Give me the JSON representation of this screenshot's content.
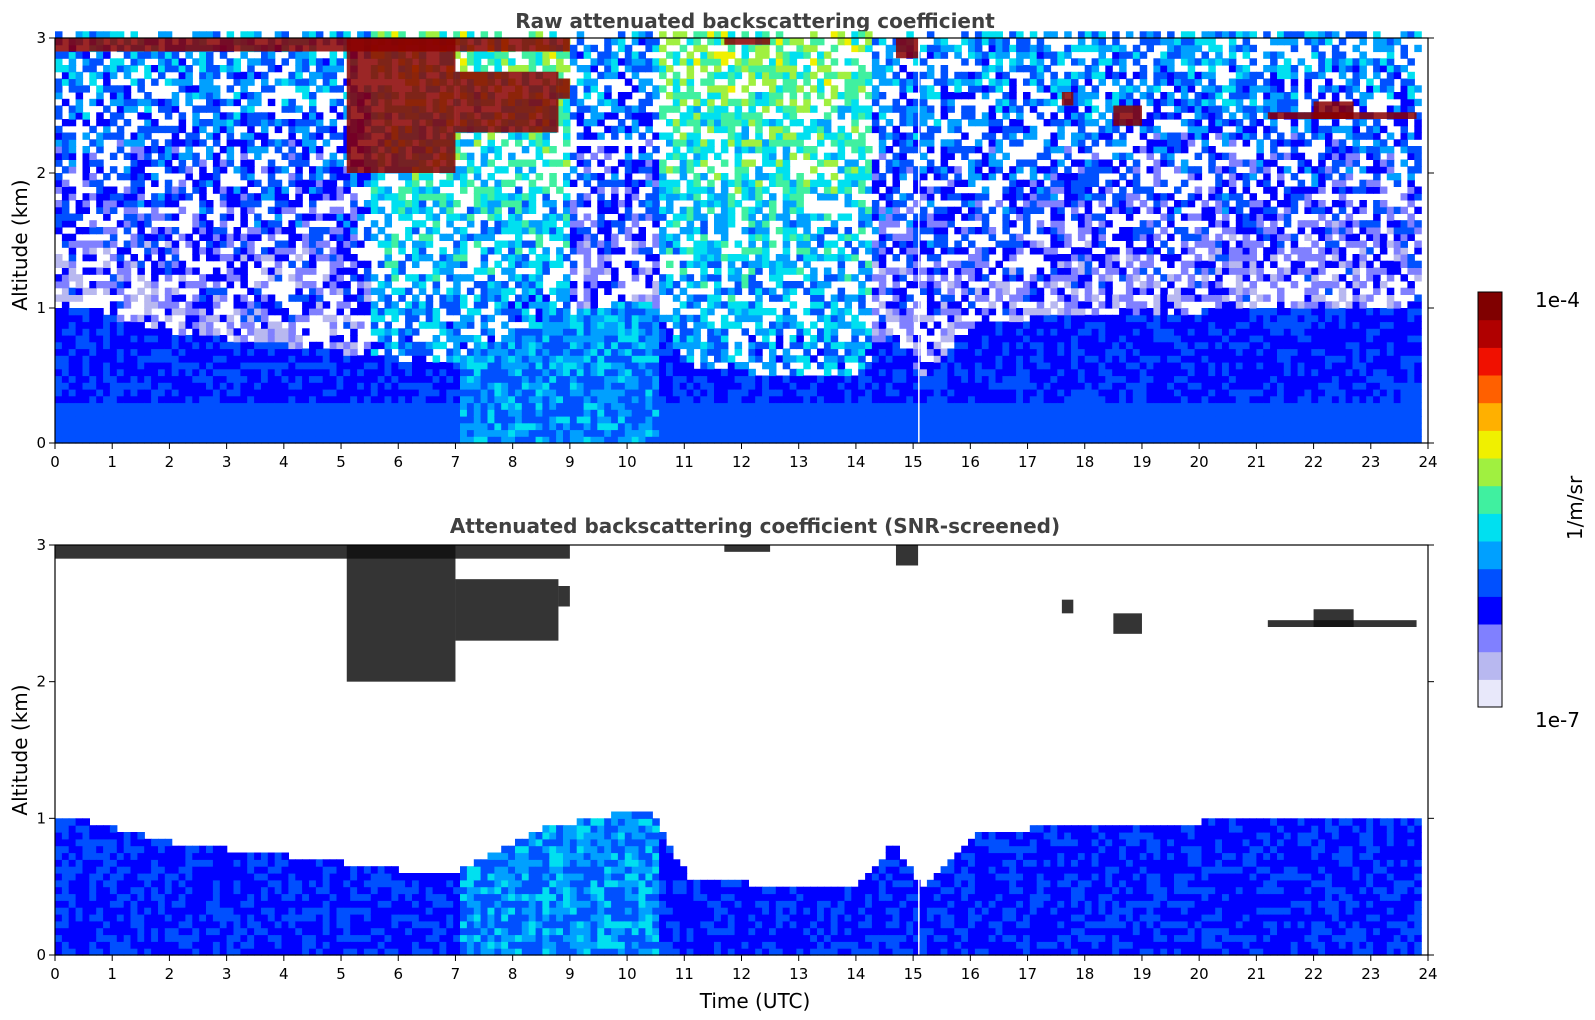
{
  "chart_data": [
    {
      "type": "heatmap",
      "title": "Raw attenuated backscattering coefficient",
      "xlabel": "",
      "ylabel": "Altitude (km)",
      "xlim": [
        0,
        24
      ],
      "ylim": [
        0,
        3
      ],
      "x_ticks": [
        "0",
        "1",
        "2",
        "3",
        "4",
        "5",
        "6",
        "7",
        "8",
        "9",
        "10",
        "11",
        "12",
        "13",
        "14",
        "15",
        "16",
        "17",
        "18",
        "19",
        "20",
        "21",
        "22",
        "23",
        "24"
      ],
      "y_ticks": [
        "0",
        "1",
        "2",
        "3"
      ],
      "data_x_range": [
        0,
        23.8
      ],
      "boundary_layer_top_km": [
        [
          0,
          1.0
        ],
        [
          2,
          0.8
        ],
        [
          4,
          0.7
        ],
        [
          6,
          0.6
        ],
        [
          7,
          0.6
        ],
        [
          8.5,
          0.9
        ],
        [
          10.3,
          1.05
        ],
        [
          11,
          0.55
        ],
        [
          13,
          0.45
        ],
        [
          14,
          0.5
        ],
        [
          14.6,
          0.8
        ],
        [
          15.1,
          0.45
        ],
        [
          16,
          0.85
        ],
        [
          18,
          0.95
        ],
        [
          20,
          0.95
        ],
        [
          22,
          1.0
        ],
        [
          23.8,
          1.0
        ]
      ],
      "cloud_layers": [
        {
          "x": [
            0,
            9
          ],
          "y_km": [
            2.9,
            3.0
          ]
        },
        {
          "x": [
            5.1,
            7.0
          ],
          "y_km": [
            2.0,
            3.0
          ]
        },
        {
          "x": [
            7.0,
            8.8
          ],
          "y_km": [
            2.3,
            2.75
          ]
        },
        {
          "x": [
            8.8,
            9.0
          ],
          "y_km": [
            2.55,
            2.7
          ]
        },
        {
          "x": [
            11.7,
            12.5
          ],
          "y_km": [
            2.95,
            3.0
          ]
        },
        {
          "x": [
            14.7,
            15.1
          ],
          "y_km": [
            2.85,
            3.0
          ]
        },
        {
          "x": [
            17.6,
            17.8
          ],
          "y_km": [
            2.5,
            2.6
          ]
        },
        {
          "x": [
            18.5,
            19.0
          ],
          "y_km": [
            2.35,
            2.5
          ]
        },
        {
          "x": [
            22.0,
            22.7
          ],
          "y_km": [
            2.4,
            2.53
          ]
        },
        {
          "x": [
            21.2,
            23.8
          ],
          "y_km": [
            2.4,
            2.45
          ]
        }
      ],
      "noise_free_altitude_km": 3.0
    },
    {
      "type": "heatmap",
      "title": "Attenuated backscattering coefficient (SNR-screened)",
      "xlabel": "Time (UTC)",
      "ylabel": "Altitude (km)",
      "xlim": [
        0,
        24
      ],
      "ylim": [
        0,
        3
      ],
      "x_ticks": [
        "0",
        "1",
        "2",
        "3",
        "4",
        "5",
        "6",
        "7",
        "8",
        "9",
        "10",
        "11",
        "12",
        "13",
        "14",
        "15",
        "16",
        "17",
        "18",
        "19",
        "20",
        "21",
        "22",
        "23",
        "24"
      ],
      "y_ticks": [
        "0",
        "1",
        "2",
        "3"
      ],
      "data_x_range": [
        0,
        23.8
      ],
      "screened": true
    }
  ],
  "colorbar": {
    "label": "1/m/sr",
    "max_label": "1e-4",
    "min_label": "1e-7",
    "colormap": "jet",
    "colors": [
      "#e8e8fa",
      "#b8b8f0",
      "#8080ff",
      "#0000ff",
      "#0050ff",
      "#00a0ff",
      "#00e0f0",
      "#40f0a0",
      "#a0f040",
      "#f0f000",
      "#ffb000",
      "#ff6000",
      "#f01000",
      "#b00000",
      "#800000"
    ]
  }
}
